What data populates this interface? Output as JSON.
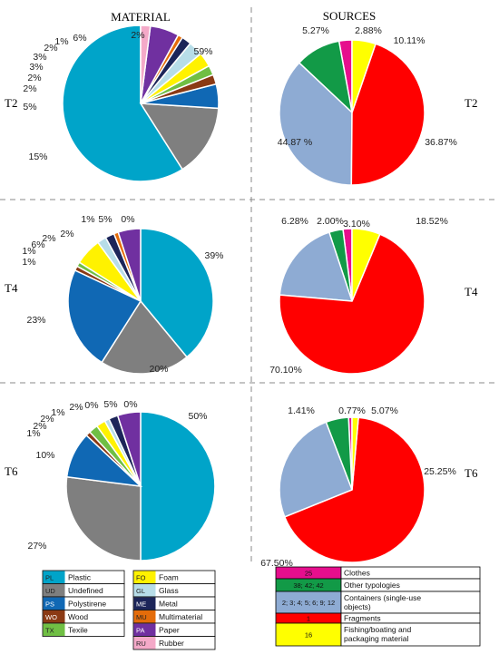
{
  "headers": {
    "left": "MATERIAL",
    "right": "SOURCES"
  },
  "row_labels": [
    "T2",
    "T4",
    "T6"
  ],
  "colors": {
    "PL": "#00a4c9",
    "UD": "#7f7f7f",
    "PS": "#1068b4",
    "WO": "#8b3a14",
    "TX": "#70bf44",
    "FO": "#fff200",
    "GL": "#b7dde8",
    "ME": "#1c2559",
    "MU": "#e46c0a",
    "PA": "#7030a0",
    "RU": "#f4a9c8",
    "clothes": "#e60e8d",
    "other": "#129a47",
    "containers": "#8eabd3",
    "fragments": "#ff0000",
    "fishing": "#ffff00"
  },
  "chart_data": [
    {
      "type": "pie",
      "title": "MATERIAL",
      "panel": "T2",
      "series": [
        {
          "code": "PL",
          "value": 59,
          "label": "59%"
        },
        {
          "code": "UD",
          "value": 15,
          "label": "15%"
        },
        {
          "code": "PS",
          "value": 5,
          "label": "5%"
        },
        {
          "code": "WO",
          "value": 2,
          "label": "2%"
        },
        {
          "code": "TX",
          "value": 2,
          "label": "2%"
        },
        {
          "code": "FO",
          "value": 3,
          "label": "3%"
        },
        {
          "code": "GL",
          "value": 3,
          "label": "3%"
        },
        {
          "code": "ME",
          "value": 2,
          "label": "2%"
        },
        {
          "code": "MU",
          "value": 1,
          "label": "1%"
        },
        {
          "code": "PA",
          "value": 6,
          "label": "6%"
        },
        {
          "code": "RU",
          "value": 2,
          "label": "2%"
        }
      ]
    },
    {
      "type": "pie",
      "title": "SOURCES",
      "panel": "T2",
      "series": [
        {
          "code": "clothes",
          "value": 2.88,
          "label": "2.88%"
        },
        {
          "code": "other",
          "value": 10.11,
          "label": "10.11%"
        },
        {
          "code": "containers",
          "value": 36.87,
          "label": "36.87%"
        },
        {
          "code": "fragments",
          "value": 44.87,
          "label": "44.87 %"
        },
        {
          "code": "fishing",
          "value": 5.27,
          "label": "5.27%"
        }
      ]
    },
    {
      "type": "pie",
      "title": "MATERIAL",
      "panel": "T4",
      "series": [
        {
          "code": "PL",
          "value": 39,
          "label": "39%"
        },
        {
          "code": "UD",
          "value": 20,
          "label": "20%"
        },
        {
          "code": "PS",
          "value": 23,
          "label": "23%"
        },
        {
          "code": "WO",
          "value": 1,
          "label": "1%"
        },
        {
          "code": "TX",
          "value": 1,
          "label": "1%"
        },
        {
          "code": "FO",
          "value": 6,
          "label": "6%"
        },
        {
          "code": "GL",
          "value": 2,
          "label": "2%"
        },
        {
          "code": "ME",
          "value": 2,
          "label": "2%"
        },
        {
          "code": "MU",
          "value": 1,
          "label": "1%"
        },
        {
          "code": "PA",
          "value": 5,
          "label": "5%"
        },
        {
          "code": "RU",
          "value": 0,
          "label": "0%"
        }
      ]
    },
    {
      "type": "pie",
      "title": "SOURCES",
      "panel": "T4",
      "series": [
        {
          "code": "clothes",
          "value": 2.0,
          "label": "2.00%"
        },
        {
          "code": "other",
          "value": 3.1,
          "label": "3.10%"
        },
        {
          "code": "containers",
          "value": 18.52,
          "label": "18.52%"
        },
        {
          "code": "fragments",
          "value": 70.1,
          "label": "70.10%"
        },
        {
          "code": "fishing",
          "value": 6.28,
          "label": "6.28%"
        }
      ]
    },
    {
      "type": "pie",
      "title": "MATERIAL",
      "panel": "T6",
      "series": [
        {
          "code": "PL",
          "value": 50,
          "label": "50%"
        },
        {
          "code": "UD",
          "value": 27,
          "label": "27%"
        },
        {
          "code": "PS",
          "value": 10,
          "label": "10%"
        },
        {
          "code": "WO",
          "value": 1,
          "label": "1%"
        },
        {
          "code": "TX",
          "value": 2,
          "label": "2%"
        },
        {
          "code": "FO",
          "value": 2,
          "label": "2%"
        },
        {
          "code": "GL",
          "value": 1,
          "label": "1%"
        },
        {
          "code": "ME",
          "value": 2,
          "label": "2%"
        },
        {
          "code": "MU",
          "value": 0,
          "label": "0%"
        },
        {
          "code": "PA",
          "value": 5,
          "label": "5%"
        },
        {
          "code": "RU",
          "value": 0,
          "label": "0%"
        }
      ]
    },
    {
      "type": "pie",
      "title": "SOURCES",
      "panel": "T6",
      "series": [
        {
          "code": "clothes",
          "value": 0.77,
          "label": "0.77%"
        },
        {
          "code": "other",
          "value": 5.07,
          "label": "5.07%"
        },
        {
          "code": "containers",
          "value": 25.25,
          "label": "25.25%"
        },
        {
          "code": "fragments",
          "value": 67.5,
          "label": "67.50%"
        },
        {
          "code": "fishing",
          "value": 1.41,
          "label": "1.41%"
        }
      ]
    }
  ],
  "legend_material": [
    {
      "code": "PL",
      "name": "Plastic"
    },
    {
      "code": "UD",
      "name": "Undefined"
    },
    {
      "code": "PS",
      "name": "Polystirene"
    },
    {
      "code": "WO",
      "name": "Wood"
    },
    {
      "code": "TX",
      "name": "Texile"
    },
    {
      "code": "FO",
      "name": "Foam"
    },
    {
      "code": "GL",
      "name": "Glass"
    },
    {
      "code": "ME",
      "name": "Metal"
    },
    {
      "code": "MU",
      "name": "Multimaterial"
    },
    {
      "code": "PA",
      "name": "Paper"
    },
    {
      "code": "RU",
      "name": "Rubber"
    }
  ],
  "legend_sources": [
    {
      "key": "clothes",
      "code": "25",
      "name": "Clothes"
    },
    {
      "key": "other",
      "code": "38; 42; 42",
      "name": "Other typologies"
    },
    {
      "key": "containers",
      "code": "2; 3; 4; 5; 6; 9; 12",
      "name": "Containers (single-use objects)"
    },
    {
      "key": "fragments",
      "code": "1",
      "name": "Fragments"
    },
    {
      "key": "fishing",
      "code": "16",
      "name": "Fishing/boating and packaging material"
    }
  ]
}
